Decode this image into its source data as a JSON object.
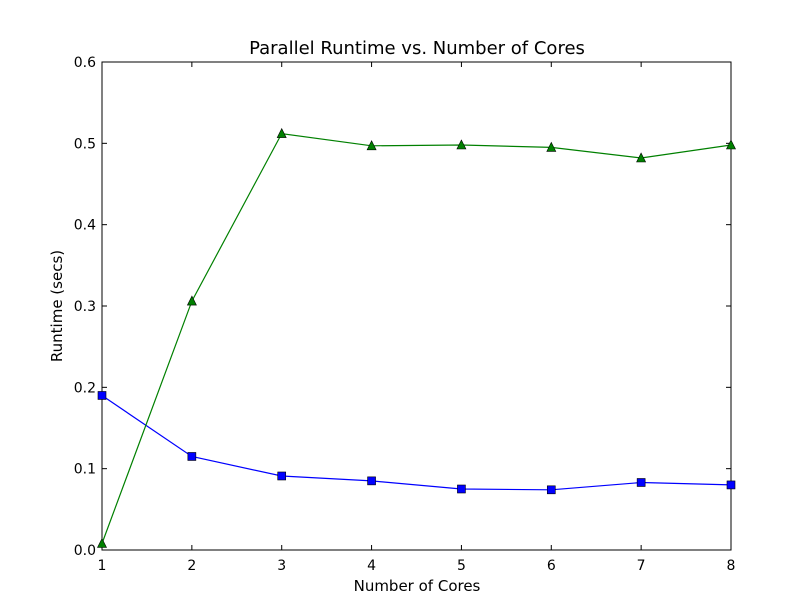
{
  "chart_data": {
    "type": "line",
    "title": "Parallel Runtime vs. Number of Cores",
    "xlabel": "Number of Cores",
    "ylabel": "Runtime (secs)",
    "xlim": [
      1,
      8
    ],
    "ylim": [
      0.0,
      0.6
    ],
    "xticks": [
      "1",
      "2",
      "3",
      "4",
      "5",
      "6",
      "7",
      "8"
    ],
    "yticks": [
      "0.0",
      "0.1",
      "0.2",
      "0.3",
      "0.4",
      "0.5",
      "0.6"
    ],
    "x": [
      1,
      2,
      3,
      4,
      5,
      6,
      7,
      8
    ],
    "grid": false,
    "series": [
      {
        "color": "#0000ff",
        "marker": "square",
        "values": [
          0.19,
          0.115,
          0.091,
          0.085,
          0.075,
          0.074,
          0.083,
          0.08
        ]
      },
      {
        "color": "#008000",
        "marker": "triangle",
        "values": [
          0.008,
          0.306,
          0.512,
          0.497,
          0.498,
          0.495,
          0.482,
          0.498
        ]
      }
    ]
  }
}
